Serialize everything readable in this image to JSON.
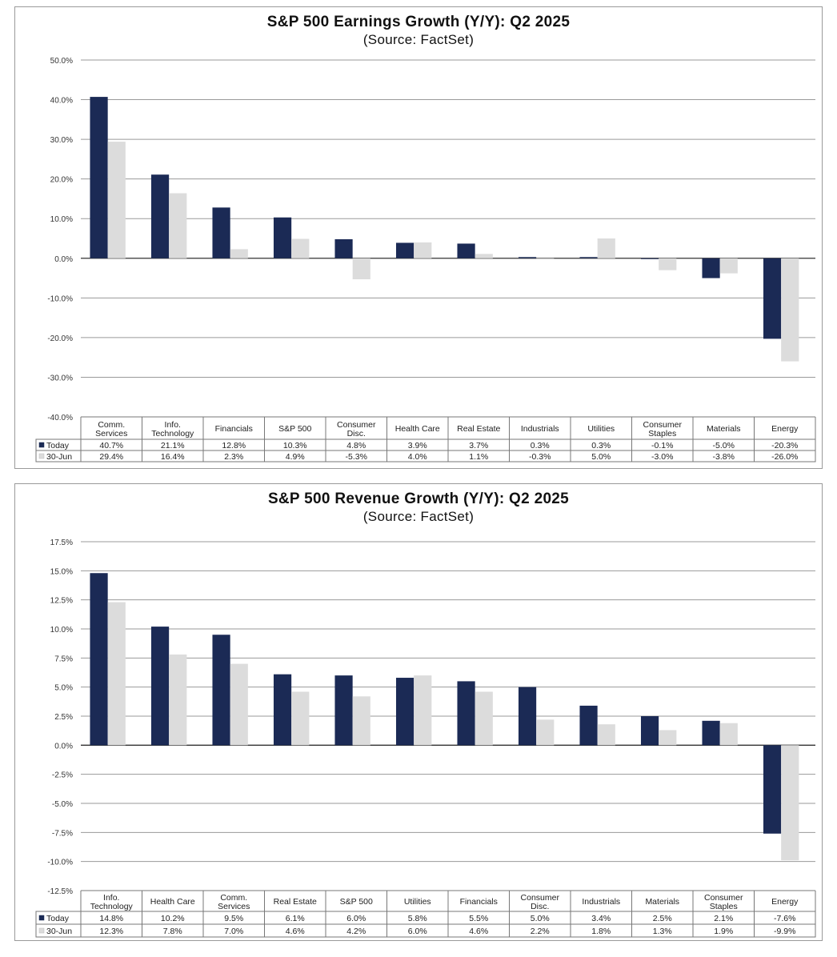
{
  "colors": {
    "today": "#1b2a55",
    "jun": "#dcdcdc",
    "grid": "#9a9a9a",
    "zero": "#333333"
  },
  "charts": [
    {
      "title": "S&P 500 Earnings Growth (Y/Y): Q2 2025",
      "source": "(Source: FactSet)"
    },
    {
      "title": "S&P 500 Revenue Growth (Y/Y): Q2 2025",
      "source": "(Source: FactSet)"
    }
  ],
  "chart_data": [
    {
      "type": "bar",
      "title": "S&P 500 Earnings Growth (Y/Y): Q2 2025",
      "subtitle": "(Source: FactSet)",
      "categories": [
        [
          "Comm.",
          "Services"
        ],
        [
          "Info.",
          "Technology"
        ],
        [
          "Financials"
        ],
        [
          "S&P 500"
        ],
        [
          "Consumer",
          "Disc."
        ],
        [
          "Health Care"
        ],
        [
          "Real Estate"
        ],
        [
          "Industrials"
        ],
        [
          "Utilities"
        ],
        [
          "Consumer",
          "Staples"
        ],
        [
          "Materials"
        ],
        [
          "Energy"
        ]
      ],
      "series": [
        {
          "name": "Today",
          "values": [
            40.7,
            21.1,
            12.8,
            10.3,
            4.8,
            3.9,
            3.7,
            0.3,
            0.3,
            -0.1,
            -5.0,
            -20.3
          ],
          "labels": [
            "40.7%",
            "21.1%",
            "12.8%",
            "10.3%",
            "4.8%",
            "3.9%",
            "3.7%",
            "0.3%",
            "0.3%",
            "-0.1%",
            "-5.0%",
            "-20.3%"
          ]
        },
        {
          "name": "30-Jun",
          "values": [
            29.4,
            16.4,
            2.3,
            4.9,
            -5.3,
            4.0,
            1.1,
            -0.3,
            5.0,
            -3.0,
            -3.8,
            -26.0
          ],
          "labels": [
            "29.4%",
            "16.4%",
            "2.3%",
            "4.9%",
            "-5.3%",
            "4.0%",
            "1.1%",
            "-0.3%",
            "5.0%",
            "-3.0%",
            "-3.8%",
            "-26.0%"
          ]
        }
      ],
      "yticks": [
        50,
        40,
        30,
        20,
        10,
        0,
        -10,
        -20,
        -30,
        -40
      ],
      "ytick_labels": [
        "50.0%",
        "40.0%",
        "30.0%",
        "20.0%",
        "10.0%",
        "0.0%",
        "-10.0%",
        "-20.0%",
        "-30.0%",
        "-40.0%"
      ],
      "ylim": [
        -40,
        50
      ],
      "grid": true,
      "legend": "data-table"
    },
    {
      "type": "bar",
      "title": "S&P 500 Revenue Growth (Y/Y): Q2 2025",
      "subtitle": "(Source: FactSet)",
      "categories": [
        [
          "Info.",
          "Technology"
        ],
        [
          "Health Care"
        ],
        [
          "Comm.",
          "Services"
        ],
        [
          "Real Estate"
        ],
        [
          "S&P 500"
        ],
        [
          "Utilities"
        ],
        [
          "Financials"
        ],
        [
          "Consumer",
          "Disc."
        ],
        [
          "Industrials"
        ],
        [
          "Materials"
        ],
        [
          "Consumer",
          "Staples"
        ],
        [
          "Energy"
        ]
      ],
      "series": [
        {
          "name": "Today",
          "values": [
            14.8,
            10.2,
            9.5,
            6.1,
            6.0,
            5.8,
            5.5,
            5.0,
            3.4,
            2.5,
            2.1,
            -7.6
          ],
          "labels": [
            "14.8%",
            "10.2%",
            "9.5%",
            "6.1%",
            "6.0%",
            "5.8%",
            "5.5%",
            "5.0%",
            "3.4%",
            "2.5%",
            "2.1%",
            "-7.6%"
          ]
        },
        {
          "name": "30-Jun",
          "values": [
            12.3,
            7.8,
            7.0,
            4.6,
            4.2,
            6.0,
            4.6,
            2.2,
            1.8,
            1.3,
            1.9,
            -9.9
          ],
          "labels": [
            "12.3%",
            "7.8%",
            "7.0%",
            "4.6%",
            "4.2%",
            "6.0%",
            "4.6%",
            "2.2%",
            "1.8%",
            "1.3%",
            "1.9%",
            "-9.9%"
          ]
        }
      ],
      "yticks": [
        17.5,
        15,
        12.5,
        10,
        7.5,
        5,
        2.5,
        0,
        -2.5,
        -5,
        -7.5,
        -10,
        -12.5
      ],
      "ytick_labels": [
        "17.5%",
        "15.0%",
        "12.5%",
        "10.0%",
        "7.5%",
        "5.0%",
        "2.5%",
        "0.0%",
        "-2.5%",
        "-5.0%",
        "-7.5%",
        "-10.0%",
        "-12.5%"
      ],
      "ylim": [
        -12.5,
        17.5
      ],
      "grid": true,
      "legend": "data-table"
    }
  ]
}
